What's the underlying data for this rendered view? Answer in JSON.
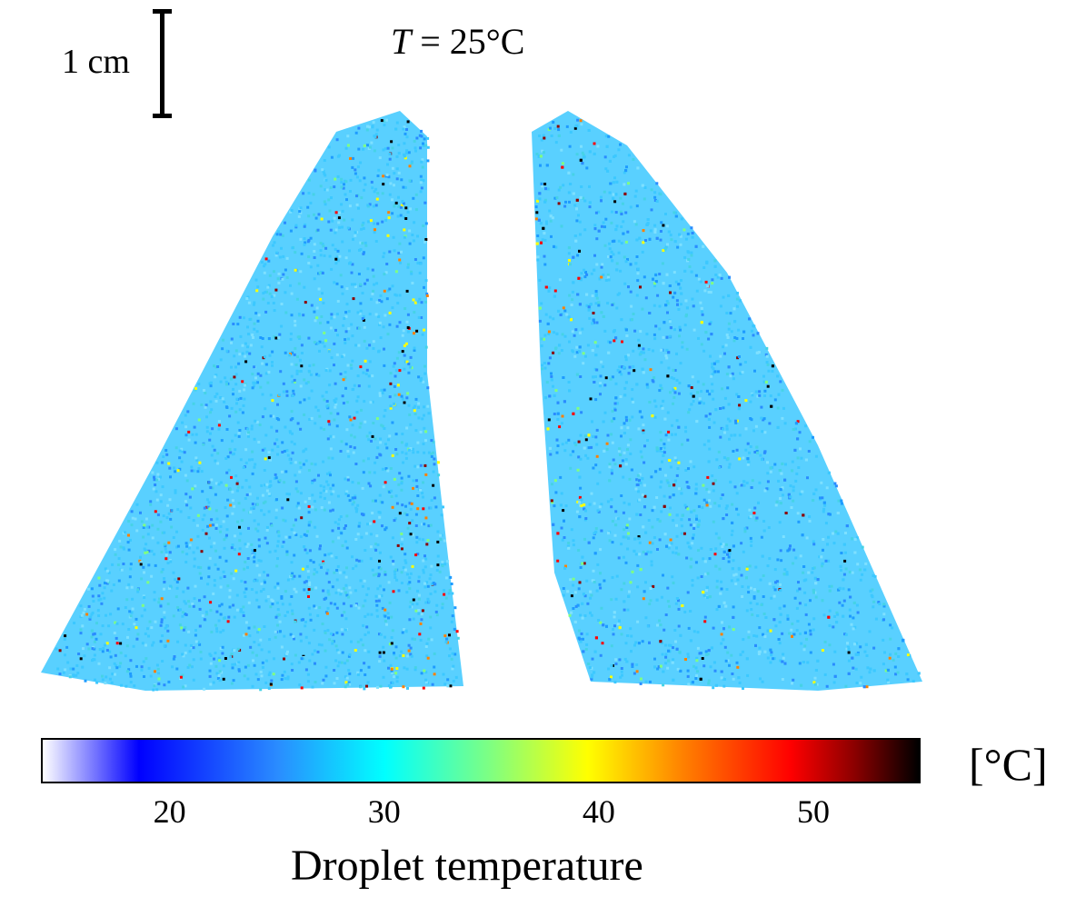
{
  "scale": {
    "label": "1 cm"
  },
  "title": {
    "var": "T",
    "rest": " = 25°C"
  },
  "colorbar": {
    "unit": "[°C]",
    "label": "Droplet temperature",
    "ticks": [
      "20",
      "30",
      "40",
      "50"
    ],
    "tick_values": [
      20,
      30,
      40,
      50
    ],
    "range": [
      14,
      55
    ],
    "stops": [
      {
        "v": 14,
        "c": "#ffffff"
      },
      {
        "v": 18.5,
        "c": "#0000ff"
      },
      {
        "v": 25,
        "c": "#2a8cff"
      },
      {
        "v": 30,
        "c": "#00ffff"
      },
      {
        "v": 35,
        "c": "#80ff80"
      },
      {
        "v": 39.5,
        "c": "#ffff00"
      },
      {
        "v": 44,
        "c": "#ff8000"
      },
      {
        "v": 49,
        "c": "#ff0000"
      },
      {
        "v": 52,
        "c": "#8b0000"
      },
      {
        "v": 55,
        "c": "#000000"
      }
    ]
  },
  "colors": {
    "droplet_base": "#3cc8ff",
    "droplet_cool": "#2a8cff",
    "droplet_hot": "#ff0000"
  }
}
